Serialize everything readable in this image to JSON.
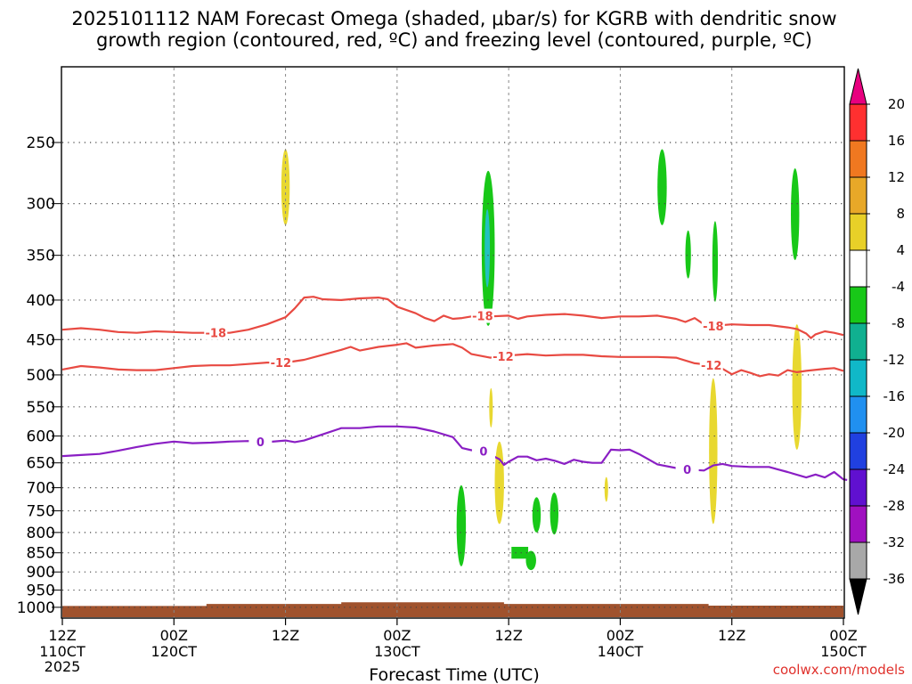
{
  "chart_data": {
    "type": "time-height",
    "title_line1": "2025101112 NAM Forecast Omega (shaded, μbar/s) for KGRB with dendritic snow",
    "title_line2": "growth region (contoured, red, ºC) and freezing level (contoured, purple, ºC)",
    "xlabel": "Forecast Time (UTC)",
    "credit": "coolwx.com/models",
    "x_range_hours": [
      0,
      84
    ],
    "y_range_hpa": [
      200,
      1030
    ],
    "x_ticks": [
      {
        "hour": 0,
        "top": "12Z",
        "bottom": "110CT",
        "extra": "2025"
      },
      {
        "hour": 12,
        "top": "00Z",
        "bottom": "120CT"
      },
      {
        "hour": 24,
        "top": "12Z",
        "bottom": ""
      },
      {
        "hour": 36,
        "top": "00Z",
        "bottom": "130CT"
      },
      {
        "hour": 48,
        "top": "12Z",
        "bottom": ""
      },
      {
        "hour": 60,
        "top": "00Z",
        "bottom": "140CT"
      },
      {
        "hour": 72,
        "top": "12Z",
        "bottom": ""
      },
      {
        "hour": 84,
        "top": "00Z",
        "bottom": "150CT"
      }
    ],
    "y_ticks": [
      {
        "p": 250,
        "label": "250"
      },
      {
        "p": 300,
        "label": "300"
      },
      {
        "p": 350,
        "label": "350"
      },
      {
        "p": 400,
        "label": "400"
      },
      {
        "p": 450,
        "label": "450"
      },
      {
        "p": 500,
        "label": "500"
      },
      {
        "p": 550,
        "label": "550"
      },
      {
        "p": 600,
        "label": "600"
      },
      {
        "p": 650,
        "label": "650"
      },
      {
        "p": 700,
        "label": "700"
      },
      {
        "p": 750,
        "label": "750"
      },
      {
        "p": 800,
        "label": "800"
      },
      {
        "p": 850,
        "label": "850"
      },
      {
        "p": 900,
        "label": "900"
      },
      {
        "p": 950,
        "label": "950"
      },
      {
        "p": 1000,
        "label": "1000"
      }
    ],
    "colorbar": {
      "ticks": [
        "20",
        "16",
        "12",
        "8",
        "4",
        "-4",
        "-8",
        "-12",
        "-16",
        "-20",
        "-24",
        "-28",
        "-32",
        "-36"
      ],
      "top_color": "#e8007f",
      "bottom_color": "#000000",
      "bins": [
        {
          "color": "#ff3030"
        },
        {
          "color": "#f07820"
        },
        {
          "color": "#e8a828"
        },
        {
          "color": "#e8d028"
        },
        {
          "color": "#ffffff"
        },
        {
          "color": "#18c818"
        },
        {
          "color": "#10b090"
        },
        {
          "color": "#10b8c8"
        },
        {
          "color": "#2090f0"
        },
        {
          "color": "#2040e0"
        },
        {
          "color": "#6010d0"
        },
        {
          "color": "#a010c0"
        },
        {
          "color": "#a8a8a8"
        }
      ]
    },
    "contours": [
      {
        "name": "-18C",
        "label": "-18",
        "color": "#e84a42",
        "label_hours": [
          16.5,
          45.2,
          70.0
        ],
        "points": [
          [
            0,
            437
          ],
          [
            2,
            435
          ],
          [
            4,
            437
          ],
          [
            6,
            440
          ],
          [
            8,
            441
          ],
          [
            10,
            439
          ],
          [
            12,
            440
          ],
          [
            14,
            441
          ],
          [
            16,
            441
          ],
          [
            18,
            441
          ],
          [
            20,
            437
          ],
          [
            22,
            430
          ],
          [
            24,
            421
          ],
          [
            25,
            410
          ],
          [
            26,
            397
          ],
          [
            27,
            396
          ],
          [
            28,
            399
          ],
          [
            30,
            400
          ],
          [
            32,
            398
          ],
          [
            34,
            397
          ],
          [
            35,
            399
          ],
          [
            36,
            408
          ],
          [
            38,
            416
          ],
          [
            39,
            422
          ],
          [
            40,
            426
          ],
          [
            41,
            419
          ],
          [
            42,
            423
          ],
          [
            43,
            422
          ],
          [
            44,
            420
          ],
          [
            45,
            419
          ],
          [
            46,
            420
          ],
          [
            48,
            419
          ],
          [
            49,
            423
          ],
          [
            50,
            420
          ],
          [
            52,
            418
          ],
          [
            54,
            417
          ],
          [
            56,
            419
          ],
          [
            58,
            422
          ],
          [
            60,
            420
          ],
          [
            62,
            420
          ],
          [
            64,
            419
          ],
          [
            66,
            423
          ],
          [
            67,
            427
          ],
          [
            68,
            422
          ],
          [
            69,
            430
          ],
          [
            70,
            432
          ],
          [
            72,
            430
          ],
          [
            74,
            431
          ],
          [
            76,
            431
          ],
          [
            78,
            434
          ],
          [
            79,
            436
          ],
          [
            80,
            442
          ],
          [
            80.5,
            448
          ],
          [
            81,
            443
          ],
          [
            82,
            439
          ],
          [
            83,
            441
          ],
          [
            84,
            444
          ]
        ]
      },
      {
        "name": "-12C",
        "label": "-12",
        "color": "#e84a42",
        "label_hours": [
          23.5,
          47.4,
          69.8
        ],
        "points": [
          [
            0,
            492
          ],
          [
            2,
            487
          ],
          [
            4,
            489
          ],
          [
            6,
            492
          ],
          [
            8,
            493
          ],
          [
            10,
            493
          ],
          [
            12,
            490
          ],
          [
            14,
            487
          ],
          [
            16,
            486
          ],
          [
            18,
            486
          ],
          [
            20,
            484
          ],
          [
            22,
            482
          ],
          [
            24,
            482
          ],
          [
            26,
            478
          ],
          [
            28,
            471
          ],
          [
            30,
            464
          ],
          [
            31,
            460
          ],
          [
            32,
            465
          ],
          [
            34,
            460
          ],
          [
            36,
            457
          ],
          [
            37,
            455
          ],
          [
            38,
            461
          ],
          [
            40,
            458
          ],
          [
            41,
            457
          ],
          [
            42,
            456
          ],
          [
            43,
            461
          ],
          [
            44,
            470
          ],
          [
            46,
            475
          ],
          [
            48,
            472
          ],
          [
            50,
            470
          ],
          [
            52,
            472
          ],
          [
            54,
            471
          ],
          [
            56,
            471
          ],
          [
            58,
            473
          ],
          [
            60,
            474
          ],
          [
            62,
            474
          ],
          [
            64,
            474
          ],
          [
            66,
            475
          ],
          [
            68,
            483
          ],
          [
            70,
            486
          ],
          [
            71,
            491
          ],
          [
            72,
            499
          ],
          [
            73,
            493
          ],
          [
            74,
            497
          ],
          [
            75,
            502
          ],
          [
            76,
            499
          ],
          [
            77,
            501
          ],
          [
            78,
            493
          ],
          [
            79,
            496
          ],
          [
            80,
            494
          ],
          [
            82,
            491
          ],
          [
            83,
            490
          ],
          [
            84,
            494
          ]
        ]
      },
      {
        "name": "0C",
        "label": "0",
        "color": "#8a1fc4",
        "label_hours": [
          21.3,
          45.3,
          67.2
        ],
        "points": [
          [
            0,
            637
          ],
          [
            2,
            635
          ],
          [
            4,
            633
          ],
          [
            6,
            627
          ],
          [
            8,
            620
          ],
          [
            10,
            614
          ],
          [
            12,
            610
          ],
          [
            14,
            613
          ],
          [
            16,
            612
          ],
          [
            18,
            610
          ],
          [
            20,
            609
          ],
          [
            22,
            611
          ],
          [
            24,
            608
          ],
          [
            25,
            611
          ],
          [
            26,
            608
          ],
          [
            28,
            597
          ],
          [
            30,
            586
          ],
          [
            32,
            586
          ],
          [
            34,
            583
          ],
          [
            36,
            583
          ],
          [
            38,
            585
          ],
          [
            40,
            592
          ],
          [
            42,
            602
          ],
          [
            43,
            622
          ],
          [
            44,
            626
          ],
          [
            45,
            625
          ],
          [
            46,
            634
          ],
          [
            47,
            643
          ],
          [
            47.5,
            654
          ],
          [
            48,
            648
          ],
          [
            49,
            638
          ],
          [
            50,
            638
          ],
          [
            51,
            645
          ],
          [
            52,
            642
          ],
          [
            53,
            646
          ],
          [
            54,
            652
          ],
          [
            55,
            644
          ],
          [
            56,
            648
          ],
          [
            57,
            650
          ],
          [
            58,
            650
          ],
          [
            59,
            625
          ],
          [
            60,
            626
          ],
          [
            61,
            625
          ],
          [
            62,
            633
          ],
          [
            63,
            643
          ],
          [
            64,
            653
          ],
          [
            66,
            660
          ],
          [
            68,
            664
          ],
          [
            69,
            665
          ],
          [
            70,
            655
          ],
          [
            71,
            652
          ],
          [
            72,
            656
          ],
          [
            74,
            658
          ],
          [
            76,
            658
          ],
          [
            77,
            663
          ],
          [
            78,
            668
          ],
          [
            80,
            679
          ],
          [
            81,
            673
          ],
          [
            82,
            679
          ],
          [
            83,
            668
          ],
          [
            84,
            683
          ],
          [
            84.4,
            684
          ]
        ]
      }
    ],
    "shaded_regions": [
      {
        "name": "yellow-300",
        "value": 5,
        "color": "#e8d830",
        "hc": 24.0,
        "hw": 0.45,
        "ptop": 255,
        "pbot": 320
      },
      {
        "name": "green-330",
        "value": -6,
        "color": "#18c818",
        "hc": 45.8,
        "hw": 0.7,
        "ptop": 272,
        "pbot": 432
      },
      {
        "name": "cyan-330",
        "value": -10,
        "color": "#22c0c0",
        "hc": 45.7,
        "hw": 0.28,
        "ptop": 305,
        "pbot": 385
      },
      {
        "name": "green-290",
        "value": -6,
        "color": "#18c818",
        "hc": 64.5,
        "hw": 0.5,
        "ptop": 255,
        "pbot": 320
      },
      {
        "name": "green-350",
        "value": -6,
        "color": "#18c818",
        "hc": 67.3,
        "hw": 0.3,
        "ptop": 325,
        "pbot": 375
      },
      {
        "name": "green-360",
        "value": -6,
        "color": "#18c818",
        "hc": 70.2,
        "hw": 0.3,
        "ptop": 316,
        "pbot": 402
      },
      {
        "name": "green-315",
        "value": -6,
        "color": "#18c818",
        "hc": 78.8,
        "hw": 0.45,
        "ptop": 270,
        "pbot": 355
      },
      {
        "name": "yellow-540",
        "value": 5,
        "color": "#e8d830",
        "hc": 46.1,
        "hw": 0.15,
        "ptop": 520,
        "pbot": 585
      },
      {
        "name": "yellow-700",
        "value": 5,
        "color": "#e8d830",
        "hc": 47.0,
        "hw": 0.5,
        "ptop": 610,
        "pbot": 780
      },
      {
        "name": "yellow-680",
        "value": 5,
        "color": "#e8d830",
        "hc": 70.0,
        "hw": 0.45,
        "ptop": 505,
        "pbot": 780
      },
      {
        "name": "yellow-520",
        "value": 5,
        "color": "#e8d830",
        "hc": 79.0,
        "hw": 0.5,
        "ptop": 430,
        "pbot": 625
      },
      {
        "name": "yellow-700s",
        "value": 5,
        "color": "#e8d830",
        "hc": 58.5,
        "hw": 0.15,
        "ptop": 678,
        "pbot": 730
      },
      {
        "name": "green-790",
        "value": -6,
        "color": "#18c818",
        "hc": 42.9,
        "hw": 0.5,
        "ptop": 695,
        "pbot": 885
      },
      {
        "name": "green-760",
        "value": -6,
        "color": "#18c818",
        "hc": 51.0,
        "hw": 0.45,
        "ptop": 720,
        "pbot": 800
      },
      {
        "name": "green-750",
        "value": -6,
        "color": "#18c818",
        "hc": 52.9,
        "hw": 0.45,
        "ptop": 710,
        "pbot": 805
      },
      {
        "name": "green-870",
        "value": -6,
        "color": "#18c818",
        "hc": 50.4,
        "hw": 0.55,
        "ptop": 845,
        "pbot": 895
      },
      {
        "name": "green-block-850",
        "value": -6,
        "color": "#18c818",
        "hc": 49.2,
        "hw": 0.9,
        "ptop": 835,
        "pbot": 865
      }
    ],
    "terrain": {
      "color": "#a0522d",
      "segments": [
        [
          0,
          996
        ],
        [
          15.5,
          996
        ],
        [
          15.5,
          990
        ],
        [
          30,
          990
        ],
        [
          30,
          985
        ],
        [
          47.5,
          985
        ],
        [
          47.5,
          990
        ],
        [
          69.5,
          990
        ],
        [
          69.5,
          995
        ],
        [
          84,
          995
        ]
      ]
    }
  }
}
